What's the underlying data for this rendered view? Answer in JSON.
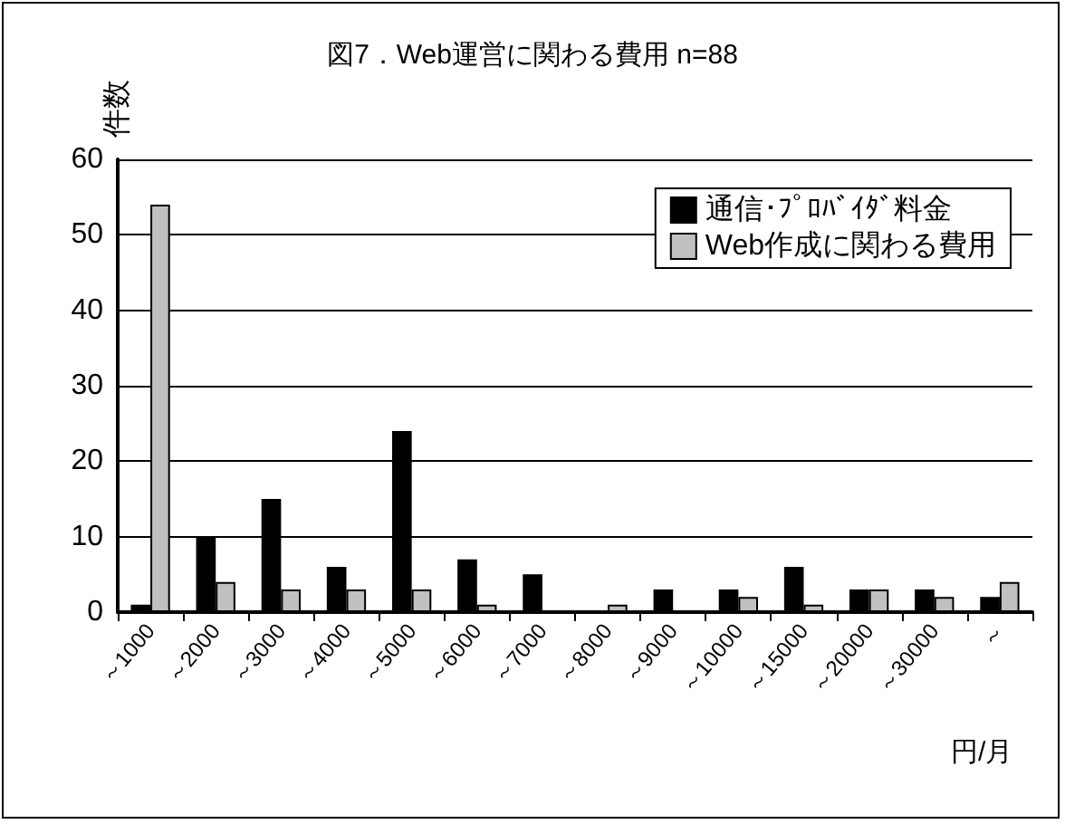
{
  "chart_data": {
    "type": "bar",
    "title": "図7．Web運営に関わる費用 n=88",
    "xlabel": "円/月",
    "ylabel": "件数",
    "categories": [
      "～1000",
      "～2000",
      "～3000",
      "～4000",
      "～5000",
      "～6000",
      "～7000",
      "～8000",
      "～9000",
      "～10000",
      "～15000",
      "～20000",
      "～30000",
      "～"
    ],
    "series": [
      {
        "name": "通信･ﾌﾟﾛﾊﾞｲﾀﾞ料金",
        "color": "#000000",
        "values": [
          1,
          10,
          15,
          6,
          24,
          7,
          5,
          0,
          3,
          3,
          6,
          3,
          3,
          2
        ]
      },
      {
        "name": "Web作成に関わる費用",
        "color": "#c0c0c0",
        "values": [
          54,
          4,
          3,
          3,
          3,
          1,
          0,
          1,
          0,
          2,
          1,
          3,
          2,
          4
        ]
      }
    ],
    "ylim": [
      0,
      60
    ],
    "yticks": [
      0,
      10,
      20,
      30,
      40,
      50,
      60
    ],
    "grid": "y",
    "legend": "top right"
  }
}
